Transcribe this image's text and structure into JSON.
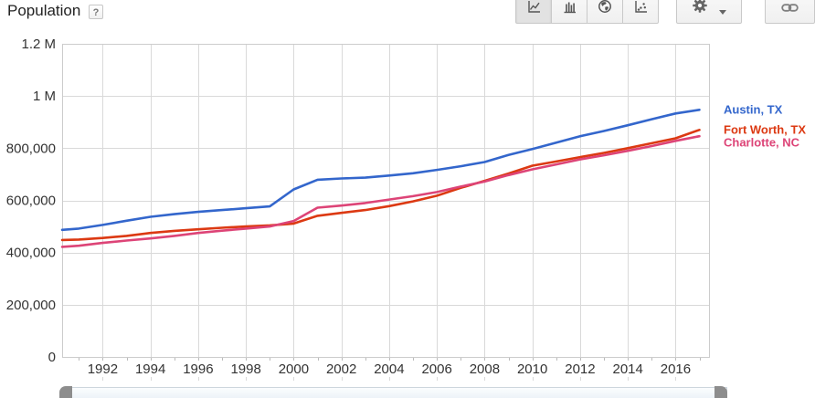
{
  "header": {
    "title": "Population",
    "help_label": "?"
  },
  "toolbar": {
    "chart_type_buttons": [
      {
        "icon": "line-chart-icon",
        "selected": true
      },
      {
        "icon": "bar-chart-icon",
        "selected": false
      },
      {
        "icon": "map-chart-icon",
        "selected": false
      },
      {
        "icon": "scatter-chart-icon",
        "selected": false
      }
    ],
    "settings_icon": "gear-icon",
    "settings_caret_icon": "chevron-down-icon",
    "link_icon": "link-icon"
  },
  "chart_data": {
    "type": "line",
    "title": "Population",
    "xlabel": "",
    "ylabel": "",
    "xlim": [
      1990.3,
      2017.4
    ],
    "ylim": [
      0,
      1200000
    ],
    "grid": true,
    "legend_position": "right-of-line-ends",
    "x_ticks": [
      1992,
      1994,
      1996,
      1998,
      2000,
      2002,
      2004,
      2006,
      2008,
      2010,
      2012,
      2014,
      2016
    ],
    "minor_x_ticks": [
      1991,
      1992,
      1993,
      1994,
      1995,
      1996,
      1997,
      1998,
      1999,
      2000,
      2001,
      2002,
      2003,
      2004,
      2005,
      2006,
      2007,
      2008,
      2009,
      2010,
      2011,
      2012,
      2013,
      2014,
      2015,
      2016,
      2017
    ],
    "y_ticks": [
      {
        "value": 0,
        "label": "0"
      },
      {
        "value": 200000,
        "label": "200,000"
      },
      {
        "value": 400000,
        "label": "400,000"
      },
      {
        "value": 600000,
        "label": "600,000"
      },
      {
        "value": 800000,
        "label": "800,000"
      },
      {
        "value": 1000000,
        "label": "1 M"
      },
      {
        "value": 1200000,
        "label": "1.2 M"
      }
    ],
    "series": [
      {
        "name": "Austin, TX",
        "color": "#3366cc",
        "points": [
          [
            1990.3,
            487000
          ],
          [
            1991,
            492000
          ],
          [
            1992,
            506000
          ],
          [
            1993,
            522000
          ],
          [
            1994,
            537000
          ],
          [
            1995,
            547000
          ],
          [
            1996,
            556000
          ],
          [
            1997,
            563000
          ],
          [
            1998,
            570000
          ],
          [
            1999,
            577000
          ],
          [
            2000,
            642000
          ],
          [
            2001,
            679000
          ],
          [
            2002,
            684000
          ],
          [
            2003,
            687000
          ],
          [
            2004,
            695000
          ],
          [
            2005,
            704000
          ],
          [
            2006,
            717000
          ],
          [
            2007,
            731000
          ],
          [
            2008,
            747000
          ],
          [
            2009,
            774000
          ],
          [
            2010,
            797000
          ],
          [
            2011,
            821000
          ],
          [
            2012,
            846000
          ],
          [
            2013,
            866000
          ],
          [
            2014,
            888000
          ],
          [
            2015,
            911000
          ],
          [
            2016,
            933000
          ],
          [
            2017,
            947000
          ]
        ]
      },
      {
        "name": "Fort Worth, TX",
        "color": "#dc3912",
        "points": [
          [
            1990.3,
            448000
          ],
          [
            1991,
            450000
          ],
          [
            1992,
            456000
          ],
          [
            1993,
            464000
          ],
          [
            1994,
            475000
          ],
          [
            1995,
            483000
          ],
          [
            1996,
            489000
          ],
          [
            1997,
            495000
          ],
          [
            1998,
            500000
          ],
          [
            1999,
            504000
          ],
          [
            2000,
            511000
          ],
          [
            2001,
            541000
          ],
          [
            2002,
            552000
          ],
          [
            2003,
            563000
          ],
          [
            2004,
            578000
          ],
          [
            2005,
            596000
          ],
          [
            2006,
            618000
          ],
          [
            2007,
            648000
          ],
          [
            2008,
            675000
          ],
          [
            2009,
            703000
          ],
          [
            2010,
            733000
          ],
          [
            2011,
            749000
          ],
          [
            2012,
            766000
          ],
          [
            2013,
            782000
          ],
          [
            2014,
            800000
          ],
          [
            2015,
            819000
          ],
          [
            2016,
            838000
          ],
          [
            2017,
            870000
          ]
        ]
      },
      {
        "name": "Charlotte, NC",
        "color": "#dd4477",
        "points": [
          [
            1990.3,
            422000
          ],
          [
            1991,
            426000
          ],
          [
            1992,
            437000
          ],
          [
            1993,
            446000
          ],
          [
            1994,
            454000
          ],
          [
            1995,
            464000
          ],
          [
            1996,
            475000
          ],
          [
            1997,
            484000
          ],
          [
            1998,
            492000
          ],
          [
            1999,
            500000
          ],
          [
            2000,
            521000
          ],
          [
            2001,
            572000
          ],
          [
            2002,
            580000
          ],
          [
            2003,
            590000
          ],
          [
            2004,
            603000
          ],
          [
            2005,
            616000
          ],
          [
            2006,
            632000
          ],
          [
            2007,
            653000
          ],
          [
            2008,
            672000
          ],
          [
            2009,
            697000
          ],
          [
            2010,
            719000
          ],
          [
            2011,
            738000
          ],
          [
            2012,
            757000
          ],
          [
            2013,
            773000
          ],
          [
            2014,
            790000
          ],
          [
            2015,
            808000
          ],
          [
            2016,
            828000
          ],
          [
            2017,
            846000
          ]
        ]
      }
    ]
  },
  "slider": {
    "type": "time-range",
    "handle_count": 2
  },
  "palette": {
    "grid": "#d9d9d9",
    "border": "#cccccc",
    "axis": "#b5b5b5",
    "tick": "#bbbbbb",
    "axis_text": "#333333",
    "icon": "#555555"
  }
}
